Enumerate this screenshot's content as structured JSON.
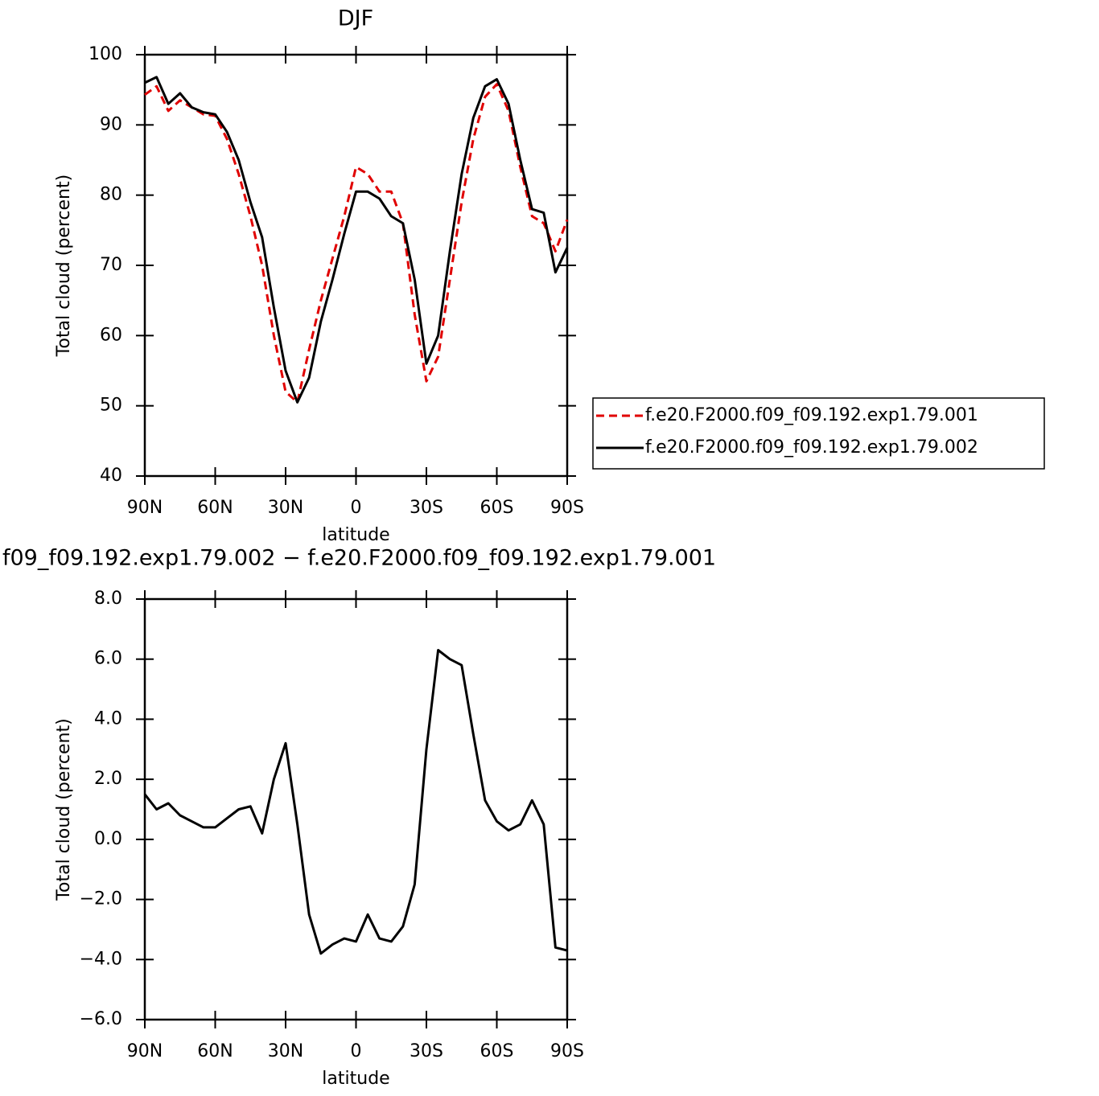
{
  "chart_data": [
    {
      "type": "line",
      "title": "DJF",
      "xlabel": "latitude",
      "ylabel": "Total cloud (percent)",
      "x": [
        90,
        85,
        80,
        75,
        70,
        65,
        60,
        55,
        50,
        45,
        40,
        35,
        30,
        25,
        20,
        15,
        10,
        5,
        0,
        -5,
        -10,
        -15,
        -20,
        -25,
        -30,
        -35,
        -40,
        -45,
        -50,
        -55,
        -60,
        -65,
        -70,
        -75,
        -80,
        -85,
        -90
      ],
      "series": [
        {
          "name": "f.e20.F2000.f09_f09.192.exp1.79.001",
          "color": "#e00000",
          "dashed": true,
          "values": [
            94.3,
            95.5,
            92,
            93.5,
            92.5,
            91.5,
            91.3,
            88,
            83,
            77,
            70,
            60,
            52,
            50.5,
            58,
            65,
            71,
            77,
            84,
            83,
            80.5,
            80.5,
            76,
            63,
            53.5,
            57,
            68,
            79,
            88,
            94,
            95.8,
            92,
            84,
            77,
            76,
            72,
            76.5
          ]
        },
        {
          "name": "f.e20.F2000.f09_f09.192.exp1.79.002",
          "color": "#000000",
          "dashed": false,
          "values": [
            96,
            96.8,
            93,
            94.5,
            92.5,
            91.8,
            91.5,
            89,
            85,
            79,
            74,
            64,
            55,
            50.5,
            54,
            62,
            68,
            74.5,
            80.5,
            80.5,
            79.5,
            77,
            76,
            68,
            56,
            60,
            72,
            83,
            91,
            95.5,
            96.5,
            93,
            85,
            78,
            77.5,
            69,
            72.5
          ]
        }
      ],
      "xlim": [
        90,
        -90
      ],
      "xticks": [
        {
          "value": 90,
          "label": "90N"
        },
        {
          "value": 60,
          "label": "60N"
        },
        {
          "value": 30,
          "label": "30N"
        },
        0,
        {
          "value": -30,
          "label": "30S"
        },
        {
          "value": -60,
          "label": "60S"
        },
        {
          "value": -90,
          "label": "90S"
        }
      ],
      "ylim": [
        40,
        100
      ],
      "yticks": [
        40,
        50,
        60,
        70,
        80,
        90,
        100
      ],
      "legend": "right"
    },
    {
      "type": "line",
      "title": "f09_f09.192.exp1.79.002 − f.e20.F2000.f09_f09.192.exp1.79.001",
      "xlabel": "latitude",
      "ylabel": "Total cloud (percent)",
      "x": [
        90,
        85,
        80,
        75,
        70,
        65,
        60,
        55,
        50,
        45,
        40,
        35,
        30,
        25,
        20,
        15,
        10,
        5,
        0,
        -5,
        -10,
        -15,
        -20,
        -25,
        -30,
        -35,
        -40,
        -45,
        -50,
        -55,
        -60,
        -65,
        -70,
        -75,
        -80,
        -85,
        -90
      ],
      "series": [
        {
          "color": "#000000",
          "dashed": false,
          "values": [
            1.5,
            1.0,
            1.2,
            0.8,
            0.6,
            0.4,
            0.4,
            0.7,
            1.0,
            1.1,
            0.2,
            2.0,
            3.2,
            0.5,
            -2.5,
            -3.8,
            -3.5,
            -3.3,
            -3.4,
            -2.5,
            -3.3,
            -3.4,
            -2.9,
            -1.5,
            3.0,
            6.3,
            6.0,
            5.8,
            3.5,
            1.3,
            0.6,
            0.3,
            0.5,
            1.3,
            0.5,
            -3.6,
            -3.7
          ]
        }
      ],
      "xlim": [
        90,
        -90
      ],
      "xticks": [
        {
          "value": 90,
          "label": "90N"
        },
        {
          "value": 60,
          "label": "60N"
        },
        {
          "value": 30,
          "label": "30N"
        },
        0,
        {
          "value": -30,
          "label": "30S"
        },
        {
          "value": -60,
          "label": "60S"
        },
        {
          "value": -90,
          "label": "90S"
        }
      ],
      "ylim": [
        -6,
        8
      ],
      "yticks": [
        {
          "value": -6,
          "label": "−6.0"
        },
        {
          "value": -4,
          "label": "−4.0"
        },
        {
          "value": -2,
          "label": "−2.0"
        },
        {
          "value": 0,
          "label": "0.0"
        },
        {
          "value": 2,
          "label": "2.0"
        },
        {
          "value": 4,
          "label": "4.0"
        },
        {
          "value": 6,
          "label": "6.0"
        },
        {
          "value": 8,
          "label": "8.0"
        }
      ]
    }
  ]
}
